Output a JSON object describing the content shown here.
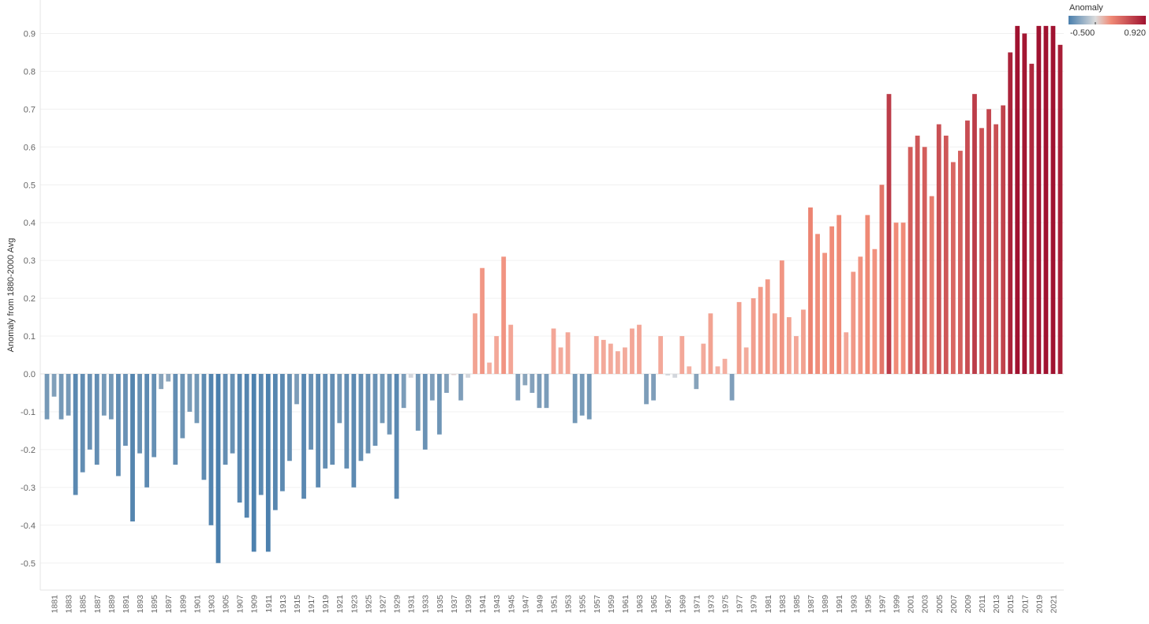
{
  "chart_data": {
    "type": "bar",
    "ylabel": "Anomaly from 1880-2000 Avg",
    "ylim": [
      -0.55,
      0.92
    ],
    "y_ticks": [
      0.9,
      0.8,
      0.7,
      0.6,
      0.5,
      0.4,
      0.3,
      0.2,
      0.1,
      0.0,
      -0.1,
      -0.2,
      -0.3,
      -0.4,
      -0.5
    ],
    "y_tick_labels": [
      "0.9",
      "0.8",
      "0.7",
      "0.6",
      "0.5",
      "0.4",
      "0.3",
      "0.2",
      "0.1",
      "0.0",
      "-0.1",
      "-0.2",
      "-0.3",
      "-0.4",
      "-0.5"
    ],
    "grid": true,
    "legend_position": "top-right",
    "legend": {
      "title": "Anomaly",
      "min_label": "-0.500",
      "max_label": "0.920",
      "min": -0.5,
      "max": 0.92
    },
    "colors": {
      "cold": "#4a7fad",
      "neutral": "#cccccc",
      "warm": "#a01230"
    },
    "years": [
      1880,
      1881,
      1882,
      1883,
      1884,
      1885,
      1886,
      1887,
      1888,
      1889,
      1890,
      1891,
      1892,
      1893,
      1894,
      1895,
      1896,
      1897,
      1898,
      1899,
      1900,
      1901,
      1902,
      1903,
      1904,
      1905,
      1906,
      1907,
      1908,
      1909,
      1910,
      1911,
      1912,
      1913,
      1914,
      1915,
      1916,
      1917,
      1918,
      1919,
      1920,
      1921,
      1922,
      1923,
      1924,
      1925,
      1926,
      1927,
      1928,
      1929,
      1930,
      1931,
      1932,
      1933,
      1934,
      1935,
      1936,
      1937,
      1938,
      1939,
      1940,
      1941,
      1942,
      1943,
      1944,
      1945,
      1946,
      1947,
      1948,
      1949,
      1950,
      1951,
      1952,
      1953,
      1954,
      1955,
      1956,
      1957,
      1958,
      1959,
      1960,
      1961,
      1962,
      1963,
      1964,
      1965,
      1966,
      1967,
      1968,
      1969,
      1970,
      1971,
      1972,
      1973,
      1974,
      1975,
      1976,
      1977,
      1978,
      1979,
      1980,
      1981,
      1982,
      1983,
      1984,
      1985,
      1986,
      1987,
      1988,
      1989,
      1990,
      1991,
      1992,
      1993,
      1994,
      1995,
      1996,
      1997,
      1998,
      1999,
      2000,
      2001,
      2002,
      2003,
      2004,
      2005,
      2006,
      2007,
      2008,
      2009,
      2010,
      2011,
      2012,
      2013,
      2014,
      2015,
      2016,
      2017,
      2018,
      2019,
      2020,
      2021,
      2022
    ],
    "values": [
      -0.12,
      -0.06,
      -0.12,
      -0.11,
      -0.32,
      -0.26,
      -0.2,
      -0.24,
      -0.11,
      -0.12,
      -0.27,
      -0.19,
      -0.39,
      -0.21,
      -0.3,
      -0.22,
      -0.04,
      -0.02,
      -0.24,
      -0.17,
      -0.1,
      -0.13,
      -0.28,
      -0.4,
      -0.5,
      -0.24,
      -0.21,
      -0.34,
      -0.38,
      -0.47,
      -0.32,
      -0.47,
      -0.36,
      -0.31,
      -0.23,
      -0.08,
      -0.33,
      -0.2,
      -0.3,
      -0.25,
      -0.24,
      -0.13,
      -0.25,
      -0.3,
      -0.23,
      -0.21,
      -0.19,
      -0.13,
      -0.16,
      -0.33,
      -0.09,
      -0.01,
      -0.15,
      -0.2,
      -0.07,
      -0.16,
      -0.05,
      0.0,
      -0.07,
      -0.01,
      0.16,
      0.28,
      0.03,
      0.1,
      0.31,
      0.13,
      -0.07,
      -0.03,
      -0.05,
      -0.09,
      -0.09,
      0.12,
      0.07,
      0.11,
      -0.13,
      -0.11,
      -0.12,
      0.1,
      0.09,
      0.08,
      0.06,
      0.07,
      0.12,
      0.13,
      -0.08,
      -0.07,
      0.1,
      -0.004,
      -0.01,
      0.1,
      0.02,
      -0.04,
      0.08,
      0.16,
      0.02,
      0.04,
      -0.07,
      0.19,
      0.07,
      0.2,
      0.23,
      0.25,
      0.16,
      0.3,
      0.15,
      0.1,
      0.17,
      0.44,
      0.37,
      0.32,
      0.39,
      0.42,
      0.11,
      0.27,
      0.31,
      0.42,
      0.33,
      0.5,
      0.74,
      0.4,
      0.4,
      0.6,
      0.63,
      0.6,
      0.47,
      0.66,
      0.63,
      0.56,
      0.59,
      0.67,
      0.74,
      0.65,
      0.7,
      0.66,
      0.71,
      0.85,
      0.92,
      0.9,
      0.82,
      0.92,
      0.92,
      0.92,
      0.87
    ],
    "x_tick_labels": [
      "1881",
      "1883",
      "1885",
      "1887",
      "1889",
      "1891",
      "1893",
      "1895",
      "1897",
      "1899",
      "1901",
      "1903",
      "1905",
      "1907",
      "1909",
      "1911",
      "1913",
      "1915",
      "1917",
      "1919",
      "1921",
      "1923",
      "1925",
      "1927",
      "1929",
      "1931",
      "1933",
      "1935",
      "1937",
      "1939",
      "1941",
      "1943",
      "1945",
      "1947",
      "1949",
      "1951",
      "1953",
      "1955",
      "1957",
      "1959",
      "1961",
      "1963",
      "1965",
      "1967",
      "1969",
      "1971",
      "1973",
      "1975",
      "1977",
      "1979",
      "1981",
      "1983",
      "1985",
      "1987",
      "1989",
      "1991",
      "1993",
      "1995",
      "1997",
      "1999",
      "2001",
      "2003",
      "2005",
      "2007",
      "2009",
      "2011",
      "2013",
      "2015",
      "2017",
      "2019",
      "2021"
    ]
  }
}
